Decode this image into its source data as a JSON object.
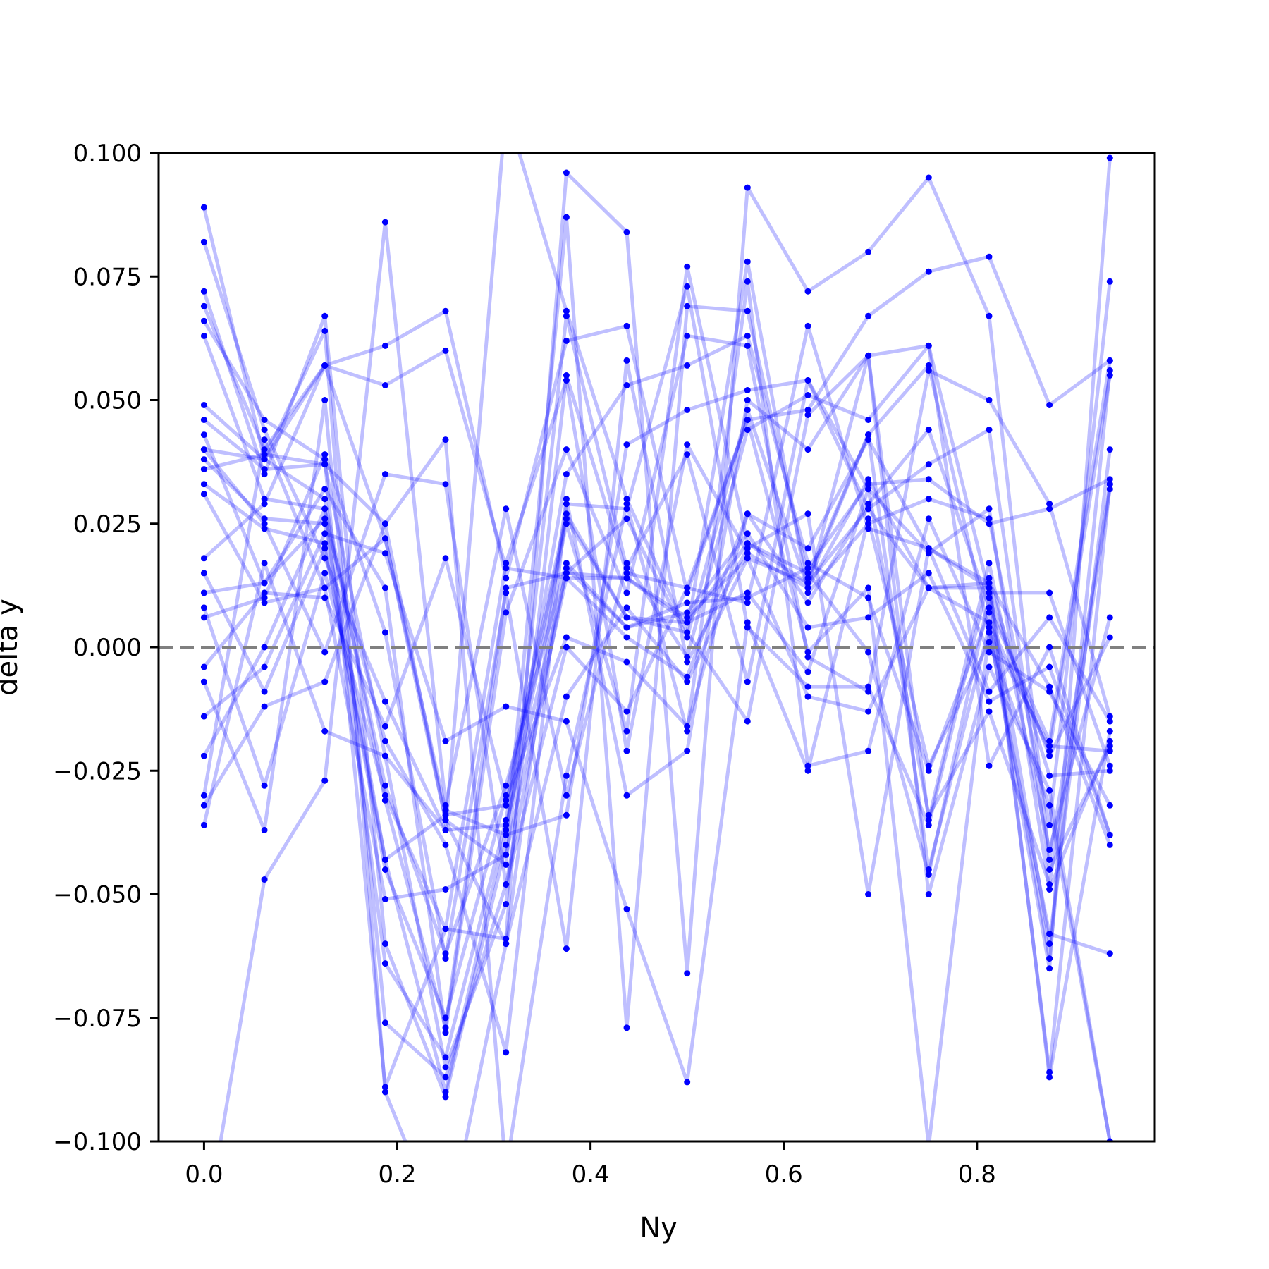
{
  "chart_data": {
    "type": "line",
    "title": "",
    "xlabel": "Ny",
    "ylabel": "delta y",
    "xlim": [
      -0.047,
      0.984
    ],
    "ylim": [
      -0.1,
      0.1
    ],
    "x_ticks": [
      0.0,
      0.2,
      0.4,
      0.6,
      0.8
    ],
    "x_tick_labels": [
      "0.0",
      "0.2",
      "0.4",
      "0.6",
      "0.8"
    ],
    "y_ticks": [
      -0.1,
      -0.075,
      -0.05,
      -0.025,
      0.0,
      0.025,
      0.05,
      0.075,
      0.1
    ],
    "y_tick_labels": [
      "−0.100",
      "−0.075",
      "−0.050",
      "−0.025",
      "0.000",
      "0.025",
      "0.050",
      "0.075",
      "0.100"
    ],
    "grid": false,
    "reference_line": {
      "y": 0.0,
      "style": "dashed",
      "color": "#808080"
    },
    "colors": {
      "series": "#0000ff",
      "line_alpha": 0.25,
      "reference": "#808080"
    },
    "x": [
      0.0,
      0.0625,
      0.125,
      0.1875,
      0.25,
      0.3125,
      0.375,
      0.4375,
      0.5,
      0.5625,
      0.625,
      0.6875,
      0.75,
      0.8125,
      0.875,
      0.9375
    ],
    "series": [
      {
        "values": [
          0.089,
          0.038,
          0.064,
          -0.09,
          -0.12,
          -0.06,
          0.03,
          -0.03,
          -0.021,
          0.05,
          0.04,
          0.059,
          0.061,
          0.011,
          0.011,
          -0.024
        ]
      },
      {
        "values": [
          0.082,
          0.044,
          0.018,
          -0.011,
          -0.037,
          -0.036,
          0.015,
          0.014,
          0.005,
          0.021,
          0.013,
          0.028,
          0.012,
          0.012,
          -0.086,
          0.033
        ]
      },
      {
        "values": [
          0.072,
          0.035,
          0.067,
          -0.06,
          -0.091,
          -0.04,
          0.087,
          -0.077,
          0.069,
          0.068,
          0.014,
          0.043,
          -0.045,
          0.004,
          -0.065,
          0.099
        ]
      },
      {
        "values": [
          0.069,
          0.04,
          0.057,
          0.061,
          0.068,
          0.014,
          0.062,
          0.065,
          0.011,
          0.046,
          0.048,
          0.067,
          0.076,
          0.079,
          0.049,
          0.058
        ]
      },
      {
        "values": [
          0.066,
          0.046,
          0.038,
          -0.089,
          -0.057,
          -0.059,
          0.096,
          0.084,
          -0.066,
          0.093,
          0.072,
          0.08,
          0.095,
          0.067,
          -0.043,
          0.033
        ]
      },
      {
        "values": [
          0.063,
          0.03,
          0.028,
          -0.064,
          -0.083,
          -0.035,
          0.035,
          0.053,
          0.057,
          0.063,
          0.017,
          0.01,
          -0.025,
          0.007,
          -0.063,
          0.056
        ]
      },
      {
        "values": [
          0.049,
          0.038,
          0.057,
          0.053,
          0.06,
          0.016,
          0.014,
          0.014,
          0.006,
          0.018,
          0.013,
          0.043,
          0.057,
          0.003,
          -0.058,
          -0.062
        ]
      },
      {
        "values": [
          0.046,
          0.036,
          0.037,
          0.025,
          -0.035,
          -0.044,
          0.067,
          0.016,
          0.039,
          -0.007,
          0.054,
          0.032,
          0.019,
          0.028,
          -0.049,
          -0.019
        ]
      },
      {
        "values": [
          0.043,
          0.013,
          0.026,
          -0.019,
          -0.04,
          -0.082,
          0.029,
          0.028,
          0.073,
          0.004,
          -0.008,
          -0.008,
          -0.036,
          0.014,
          -0.087,
          -0.017
        ]
      },
      {
        "values": [
          0.038,
          0.026,
          0.025,
          -0.043,
          -0.09,
          -0.037,
          0.025,
          -0.017,
          0.077,
          0.021,
          0.015,
          -0.001,
          -0.046,
          0.01,
          -0.022,
          0.002
        ]
      },
      {
        "values": [
          0.036,
          0.039,
          0.037,
          -0.022,
          -0.085,
          -0.052,
          0.055,
          0.015,
          0.012,
          0.009,
          0.065,
          0.024,
          0.02,
          0.013,
          -0.008,
          -0.04
        ]
      },
      {
        "values": [
          0.033,
          0.024,
          0.021,
          -0.045,
          -0.075,
          -0.03,
          0.027,
          0.006,
          0.003,
          0.078,
          0.011,
          0.025,
          0.03,
          0.026,
          -0.036,
          0.074
        ]
      },
      {
        "values": [
          0.031,
          0.009,
          0.012,
          -0.051,
          -0.049,
          -0.042,
          0.014,
          0.002,
          -0.006,
          0.027,
          0.02,
          0.042,
          0.02,
          0.012,
          -0.06,
          0.04
        ]
      },
      {
        "values": [
          0.018,
          0.029,
          0.057,
          0.022,
          -0.033,
          -0.038,
          -0.034,
          0.041,
          0.048,
          0.052,
          0.054,
          0.028,
          0.037,
          0.044,
          -0.045,
          -0.02
        ]
      },
      {
        "values": [
          0.011,
          0.013,
          0.032,
          0.012,
          -0.078,
          0.007,
          0.04,
          0.011,
          0.063,
          0.061,
          -0.002,
          -0.009,
          0.056,
          0.05,
          0.029,
          -0.014
        ]
      },
      {
        "values": [
          0.008,
          -0.028,
          0.015,
          -0.03,
          -0.057,
          0.017,
          0.054,
          -0.021,
          0.041,
          0.019,
          0.012,
          0.059,
          -0.035,
          0.017,
          -0.041,
          0.006
        ]
      },
      {
        "values": [
          0.006,
          0.01,
          0.039,
          0.003,
          -0.063,
          0.011,
          -0.061,
          0.058,
          -0.003,
          0.02,
          0.027,
          -0.05,
          0.02,
          -0.009,
          0.006,
          -0.015
        ]
      },
      {
        "values": [
          -0.004,
          0.011,
          0.01,
          -0.016,
          0.018,
          -0.031,
          0.002,
          -0.003,
          -0.016,
          0.027,
          0.009,
          0.029,
          0.044,
          0.008,
          -0.019,
          0.058
        ]
      },
      {
        "values": [
          -0.007,
          -0.037,
          0.05,
          -0.076,
          -0.087,
          -0.048,
          0.0,
          -0.013,
          0.012,
          0.046,
          -0.001,
          0.012,
          -0.101,
          0.003,
          -0.02,
          -0.021
        ]
      },
      {
        "values": [
          -0.014,
          -0.004,
          0.023,
          0.019,
          -0.019,
          -0.012,
          -0.015,
          -0.053,
          -0.088,
          0.005,
          -0.025,
          0.026,
          -0.024,
          0.001,
          -0.032,
          -0.1
        ]
      },
      {
        "values": [
          -0.022,
          0.0,
          0.028,
          -0.028,
          -0.062,
          -0.028,
          0.017,
          0.004,
          0.007,
          0.023,
          0.004,
          0.006,
          0.015,
          -0.011,
          -0.004,
          -0.038
        ]
      },
      {
        "values": [
          -0.03,
          0.042,
          0.012,
          0.022,
          -0.035,
          -0.06,
          -0.01,
          0.008,
          -0.007,
          0.018,
          -0.01,
          -0.013,
          0.012,
          0.005,
          -0.021,
          0.055
        ]
      },
      {
        "values": [
          -0.032,
          -0.012,
          -0.007,
          0.025,
          0.042,
          -0.106,
          -0.026,
          0.029,
          -0.017,
          0.074,
          -0.024,
          -0.021,
          0.026,
          -0.001,
          -0.009,
          -0.032
        ]
      },
      {
        "values": [
          0.04,
          0.025,
          -0.001,
          0.035,
          0.033,
          -0.048,
          0.016,
          0.004,
          0.009,
          0.01,
          0.016,
          0.033,
          0.034,
          0.025,
          0.028,
          0.034
        ]
      },
      {
        "values": [
          0.015,
          -0.009,
          0.02,
          -0.043,
          -0.034,
          -0.032,
          0.026,
          0.006,
          0.005,
          0.011,
          -0.005,
          0.032,
          -0.034,
          -0.013,
          -0.048,
          0.032
        ]
      },
      {
        "values": [
          -0.12,
          -0.047,
          -0.027,
          0.086,
          -0.032,
          0.028,
          -0.03,
          0.017,
          -0.002,
          0.044,
          0.051,
          0.046,
          0.061,
          -0.024,
          0.0,
          -0.038
        ]
      },
      {
        "values": [
          -0.036,
          0.017,
          -0.017,
          -0.022,
          -0.037,
          0.109,
          0.068,
          0.03,
          0.003,
          -0.015,
          0.047,
          0.059,
          -0.05,
          -0.004,
          -0.029,
          -0.1
        ]
      },
      {
        "values": [
          0.04,
          0.038,
          0.03,
          -0.031,
          -0.077,
          0.012,
          0.015,
          0.026,
          0.002,
          0.048,
          0.012,
          0.034,
          0.012,
          0.013,
          -0.026,
          -0.025
        ]
      }
    ]
  }
}
